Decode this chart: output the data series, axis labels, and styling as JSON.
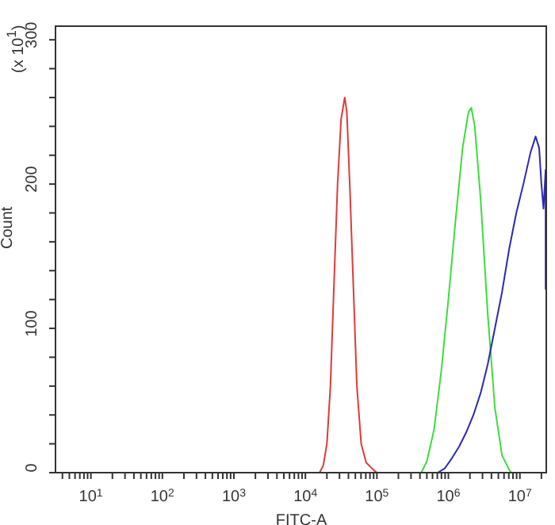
{
  "chart_data": {
    "type": "line",
    "xlabel": "FITC-A",
    "ylabel": "Count",
    "annotations": [
      "(x 10$^{1}$)"
    ],
    "log": "x",
    "grid": false,
    "legend": false,
    "marker": "none",
    "line_style": "solid",
    "xlim": [
      3.2,
      24000000
    ],
    "ylim": [
      0,
      310
    ],
    "xticks": [
      {
        "value": 4,
        "label": null
      },
      {
        "value": 5,
        "label": null
      },
      {
        "value": 6,
        "label": null
      },
      {
        "value": 7,
        "label": null
      },
      {
        "value": 8,
        "label": null
      },
      {
        "value": 9,
        "label": null
      },
      {
        "value": 10,
        "label": "10$^{1}$"
      },
      {
        "value": 20,
        "label": null
      },
      {
        "value": 30,
        "label": null
      },
      {
        "value": 40,
        "label": null
      },
      {
        "value": 50,
        "label": null
      },
      {
        "value": 60,
        "label": null
      },
      {
        "value": 70,
        "label": null
      },
      {
        "value": 80,
        "label": null
      },
      {
        "value": 90,
        "label": null
      },
      {
        "value": 100,
        "label": "10$^{2}$"
      },
      {
        "value": 200,
        "label": null
      },
      {
        "value": 300,
        "label": null
      },
      {
        "value": 400,
        "label": null
      },
      {
        "value": 500,
        "label": null
      },
      {
        "value": 600,
        "label": null
      },
      {
        "value": 700,
        "label": null
      },
      {
        "value": 800,
        "label": null
      },
      {
        "value": 900,
        "label": null
      },
      {
        "value": 1000,
        "label": "10$^{3}$"
      },
      {
        "value": 2000,
        "label": null
      },
      {
        "value": 3000,
        "label": null
      },
      {
        "value": 4000,
        "label": null
      },
      {
        "value": 5000,
        "label": null
      },
      {
        "value": 6000,
        "label": null
      },
      {
        "value": 7000,
        "label": null
      },
      {
        "value": 8000,
        "label": null
      },
      {
        "value": 9000,
        "label": null
      },
      {
        "value": 10000,
        "label": "10$^{4}$"
      },
      {
        "value": 20000,
        "label": null
      },
      {
        "value": 30000,
        "label": null
      },
      {
        "value": 40000,
        "label": null
      },
      {
        "value": 50000,
        "label": null
      },
      {
        "value": 60000,
        "label": null
      },
      {
        "value": 70000,
        "label": null
      },
      {
        "value": 80000,
        "label": null
      },
      {
        "value": 90000,
        "label": null
      },
      {
        "value": 100000,
        "label": "10$^{5}$"
      },
      {
        "value": 200000,
        "label": null
      },
      {
        "value": 300000,
        "label": null
      },
      {
        "value": 400000,
        "label": null
      },
      {
        "value": 500000,
        "label": null
      },
      {
        "value": 600000,
        "label": null
      },
      {
        "value": 700000,
        "label": null
      },
      {
        "value": 800000,
        "label": null
      },
      {
        "value": 900000,
        "label": null
      },
      {
        "value": 1000000,
        "label": "10$^{6}$"
      },
      {
        "value": 2000000,
        "label": null
      },
      {
        "value": 3000000,
        "label": null
      },
      {
        "value": 4000000,
        "label": null
      },
      {
        "value": 5000000,
        "label": null
      },
      {
        "value": 6000000,
        "label": null
      },
      {
        "value": 7000000,
        "label": null
      },
      {
        "value": 8000000,
        "label": null
      },
      {
        "value": 9000000,
        "label": null
      },
      {
        "value": 10000000,
        "label": "10$^{7}$"
      },
      {
        "value": 20000000,
        "label": null
      }
    ],
    "yticks": [
      0,
      {
        "value": 20,
        "label": null
      },
      {
        "value": 40,
        "label": null
      },
      {
        "value": 60,
        "label": null
      },
      {
        "value": 80,
        "label": null
      },
      100,
      {
        "value": 120,
        "label": null
      },
      {
        "value": 140,
        "label": null
      },
      {
        "value": 160,
        "label": null
      },
      {
        "value": 180,
        "label": null
      },
      200,
      {
        "value": 220,
        "label": null
      },
      {
        "value": 240,
        "label": null
      },
      {
        "value": 260,
        "label": null
      },
      {
        "value": 280,
        "label": null
      },
      300
    ],
    "series": [
      {
        "color": "#e03a3a",
        "x": [
          15800,
          17800,
          20000,
          22400,
          25100,
          28200,
          31600,
          35500,
          38000,
          41700,
          46800,
          52500,
          60300,
          70800,
          89100,
          100000
        ],
        "values": [
          0,
          5,
          20,
          60,
          130,
          200,
          245,
          260,
          250,
          200,
          130,
          60,
          20,
          7,
          2,
          0
        ]
      },
      {
        "color": "#3ddc3d",
        "x": [
          417000,
          501000,
          631000,
          794000,
          1000000,
          1260000,
          1580000,
          1910000,
          2090000,
          2340000,
          2820000,
          3550000,
          4470000,
          5620000,
          7080000,
          7590000
        ],
        "values": [
          0,
          8,
          30,
          70,
          120,
          175,
          225,
          250,
          253,
          240,
          190,
          110,
          45,
          12,
          2,
          0
        ]
      },
      {
        "color": "#2a2ab4",
        "x": [
          708000,
          891000,
          1120000,
          1410000,
          1780000,
          2240000,
          2820000,
          3550000,
          4470000,
          5620000,
          7080000,
          8910000,
          11200000,
          14100000,
          16600000,
          18600000,
          20000000,
          21400000,
          22900000,
          22900000
        ],
        "values": [
          0,
          3,
          10,
          18,
          28,
          40,
          55,
          75,
          100,
          125,
          155,
          180,
          200,
          222,
          233,
          225,
          200,
          183,
          210,
          127
        ]
      }
    ]
  }
}
